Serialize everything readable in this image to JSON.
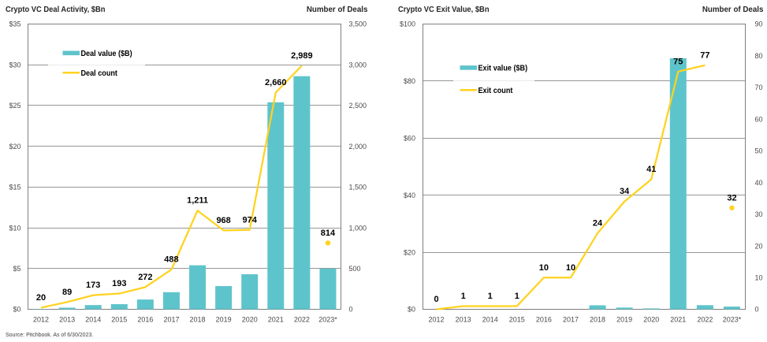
{
  "source_note": "Source: Pitchbook. As of 6/30/2023.",
  "colors": {
    "bar": "#5EC4CB",
    "line": "#FFD21E",
    "grid": "#969696",
    "plot_border": "#7F7F7F",
    "axis_text": "#4A4A4A",
    "title_text": "#262626",
    "data_label_text": "#000000"
  },
  "chart_data": [
    {
      "type": "bar",
      "title": "Crypto VC Deal Activity, $Bn",
      "right_axis_title": "Number of Deals",
      "categories": [
        "2012",
        "2013",
        "2014",
        "2015",
        "2016",
        "2017",
        "2018",
        "2019",
        "2020",
        "2021",
        "2022",
        "2023*"
      ],
      "series": [
        {
          "name": "Deal value ($B)",
          "kind": "bar",
          "axis": "left",
          "values": [
            0.03,
            0.2,
            0.52,
            0.63,
            1.2,
            2.1,
            5.4,
            2.85,
            4.3,
            25.4,
            28.6,
            5.0
          ]
        },
        {
          "name": "Deal count",
          "kind": "line",
          "axis": "right",
          "values": [
            20,
            89,
            173,
            193,
            272,
            488,
            1211,
            968,
            974,
            2660,
            2989,
            null
          ],
          "labels": [
            "20",
            "89",
            "173",
            "193",
            "272",
            "488",
            "1,211",
            "968",
            "974",
            "2,660",
            "2,989",
            "814"
          ],
          "isolated_point": {
            "category": "2023*",
            "index": 11,
            "value": 814
          }
        }
      ],
      "left_axis": {
        "min": 0,
        "max": 35,
        "step": 5,
        "prefix": "$",
        "labels": [
          "$0",
          "$5",
          "$10",
          "$15",
          "$20",
          "$25",
          "$30",
          "$35"
        ]
      },
      "right_axis": {
        "min": 0,
        "max": 3500,
        "step": 500,
        "labels": [
          "0",
          "500",
          "1,000",
          "1,500",
          "2,000",
          "2,500",
          "3,000",
          "3,500"
        ]
      },
      "grid_step_left_axis": 5,
      "legend_position": "upper-left-inside"
    },
    {
      "type": "bar",
      "title": "Crypto VC Exit Value, $Bn",
      "right_axis_title": "Number of Deals",
      "categories": [
        "2012",
        "2013",
        "2014",
        "2015",
        "2016",
        "2017",
        "2018",
        "2019",
        "2020",
        "2021",
        "2022",
        "2023*"
      ],
      "series": [
        {
          "name": "Exit value ($B)",
          "kind": "bar",
          "axis": "left",
          "values": [
            0,
            0,
            0,
            0,
            0,
            0,
            1.4,
            0.6,
            0.3,
            88,
            1.45,
            0.95
          ]
        },
        {
          "name": "Exit count",
          "kind": "line",
          "axis": "right",
          "values": [
            0,
            1,
            1,
            1,
            10,
            10,
            24,
            34,
            41,
            75,
            77,
            null
          ],
          "labels": [
            "0",
            "1",
            "1",
            "1",
            "10",
            "10",
            "24",
            "34",
            "41",
            "75",
            "77",
            "32"
          ],
          "isolated_point": {
            "category": "2023*",
            "index": 11,
            "value": 32
          }
        }
      ],
      "left_axis": {
        "min": 0,
        "max": 100,
        "step": 20,
        "prefix": "$",
        "labels": [
          "$0",
          "$20",
          "$40",
          "$60",
          "$80",
          "$100"
        ]
      },
      "right_axis": {
        "min": 0,
        "max": 90,
        "step": 10,
        "labels": [
          "0",
          "10",
          "20",
          "30",
          "40",
          "50",
          "60",
          "70",
          "80",
          "90"
        ]
      },
      "grid_step_left_axis": 20,
      "legend_position": "upper-left-inside"
    }
  ]
}
